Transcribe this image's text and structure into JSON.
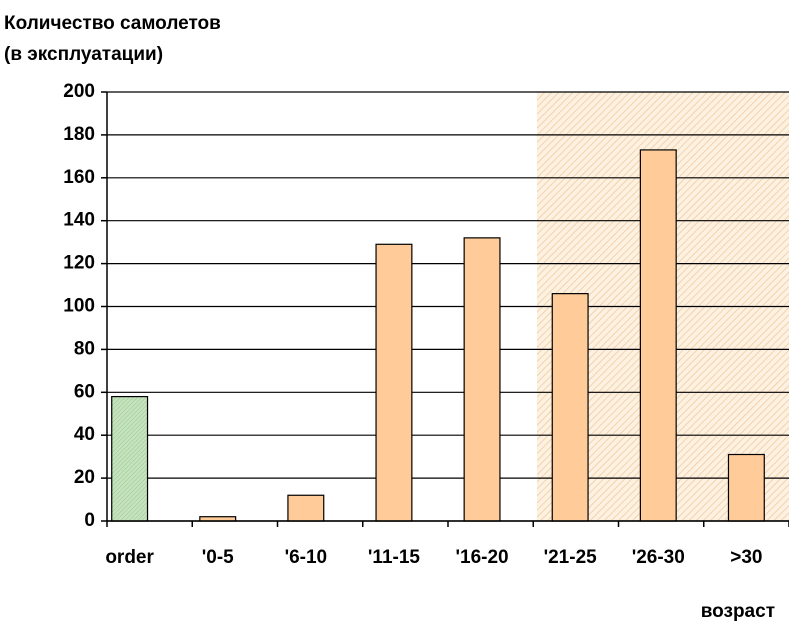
{
  "chart_data": {
    "type": "bar",
    "title": [
      "Количество самолетов",
      "(в эксплуатации)"
    ],
    "x_label": "возраст",
    "categories": [
      "order",
      "'0-5",
      "'6-10",
      "'11-15",
      "'16-20",
      "'21-25",
      "'26-30",
      ">30"
    ],
    "values": [
      58,
      2,
      12,
      129,
      132,
      106,
      173,
      31
    ],
    "colors": [
      "#c6e3bf",
      "#ffcc99",
      "#ffcc99",
      "#ffcc99",
      "#ffcc99",
      "#ffcc99",
      "#ffcc99",
      "#ffcc99"
    ],
    "ylim": [
      0,
      200
    ],
    "yticks": [
      0,
      20,
      40,
      60,
      80,
      100,
      120,
      140,
      160,
      180,
      200
    ],
    "grid": true
  }
}
